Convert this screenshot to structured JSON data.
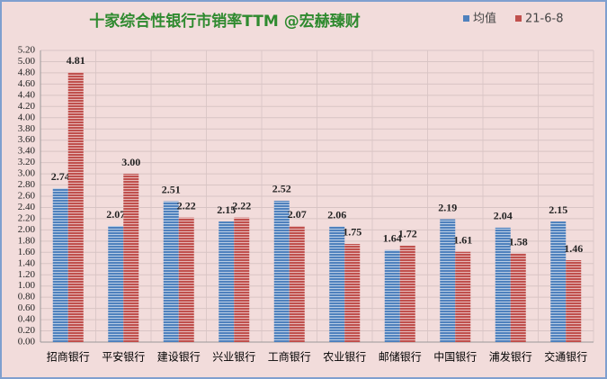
{
  "chart_data": {
    "type": "bar",
    "title": "十家综合性银行市销率TTM   @宏赫臻财",
    "categories": [
      "招商银行",
      "平安银行",
      "建设银行",
      "兴业银行",
      "工商银行",
      "农业银行",
      "邮储银行",
      "中国银行",
      "浦发银行",
      "交通银行"
    ],
    "series": [
      {
        "name": "均值",
        "color": "#4f81bd",
        "values": [
          2.74,
          2.07,
          2.51,
          2.15,
          2.52,
          2.06,
          1.64,
          2.19,
          2.04,
          2.15
        ],
        "value_labels": [
          "2.74",
          "2.07",
          "2.51",
          "2.15",
          "2.52",
          "2.06",
          "1.64",
          "2.19",
          "2.04",
          "2.15"
        ]
      },
      {
        "name": "21-6-8",
        "color": "#c0504d",
        "values": [
          4.81,
          3.0,
          2.22,
          2.22,
          2.07,
          1.75,
          1.72,
          1.61,
          1.58,
          1.46
        ],
        "value_labels": [
          "4.81",
          "3.00",
          "2.22",
          "2.22",
          "2.07",
          "1.75",
          "1.72",
          "1.61",
          "1.58",
          "1.46"
        ]
      }
    ],
    "ylim": [
      0,
      5.2
    ],
    "yticks": [
      {
        "value": 0,
        "label": "0.00"
      },
      {
        "value": 0.2,
        "label": "0.20"
      },
      {
        "value": 0.4,
        "label": "0.40"
      },
      {
        "value": 0.6,
        "label": "0.60"
      },
      {
        "value": 0.8,
        "label": "0.80"
      },
      {
        "value": 1,
        "label": "1.00"
      },
      {
        "value": 1.2,
        "label": "1.20"
      },
      {
        "value": 1.4,
        "label": "1.40"
      },
      {
        "value": 1.6,
        "label": "1.60"
      },
      {
        "value": 1.8,
        "label": "1.80"
      },
      {
        "value": 2,
        "label": "2.00"
      },
      {
        "value": 2.2,
        "label": "2.20"
      },
      {
        "value": 2.4,
        "label": "2.40"
      },
      {
        "value": 2.6,
        "label": "2.60"
      },
      {
        "value": 2.8,
        "label": "2.80"
      },
      {
        "value": 3,
        "label": "3.00"
      },
      {
        "value": 3.2,
        "label": "3.20"
      },
      {
        "value": 3.4,
        "label": "3.40"
      },
      {
        "value": 3.6,
        "label": "3.60"
      },
      {
        "value": 3.8,
        "label": "3.80"
      },
      {
        "value": 4,
        "label": "4.00"
      },
      {
        "value": 4.2,
        "label": "4.20"
      },
      {
        "value": 4.4,
        "label": "4.40"
      },
      {
        "value": 4.6,
        "label": "4.60"
      },
      {
        "value": 4.8,
        "label": "4.80"
      },
      {
        "value": 5,
        "label": "5.00"
      },
      {
        "value": 5.2,
        "label": "5.20"
      }
    ],
    "grid": true,
    "legend": "top-right"
  }
}
